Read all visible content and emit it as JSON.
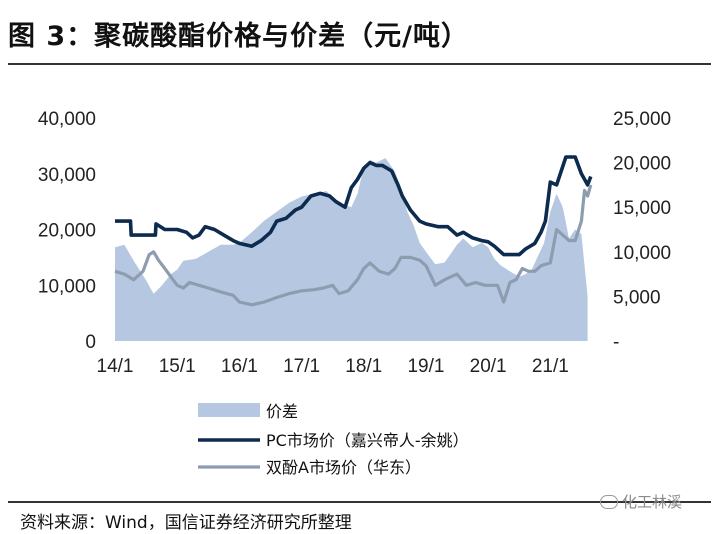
{
  "header": {
    "title": "图 3：聚碳酸酯价格与价差（元/吨）"
  },
  "footer": {
    "source": "资料来源：Wind，国信证券经济研究所整理",
    "watermark": "化工林溪"
  },
  "chart_data": {
    "type": "line",
    "title": "",
    "x_ticks": [
      "14/1",
      "15/1",
      "16/1",
      "17/1",
      "18/1",
      "19/1",
      "20/1",
      "21/1"
    ],
    "x_range": [
      2014.0,
      2021.67
    ],
    "y_left": {
      "ticks": [
        "40,000",
        "30,000",
        "20,000",
        "10,000",
        "0"
      ],
      "ylim": [
        0,
        40000
      ]
    },
    "y_right": {
      "ticks": [
        "25,000",
        "20,000",
        "15,000",
        "10,000",
        "5,000",
        "-"
      ],
      "ylim": [
        0,
        25000
      ]
    },
    "legend_position": "bottom",
    "colors": {
      "spread": "#b6c8e1",
      "pc": "#0d2a4f",
      "bpa": "#8e9cb0"
    },
    "series": [
      {
        "name": "价差",
        "kind": "area",
        "axis": "right",
        "x": [
          2014.0,
          2014.15,
          2014.3,
          2014.5,
          2014.62,
          2014.75,
          2014.9,
          2015.0,
          2015.1,
          2015.3,
          2015.5,
          2015.7,
          2015.9,
          2016.0,
          2016.2,
          2016.4,
          2016.6,
          2016.8,
          2017.0,
          2017.2,
          2017.4,
          2017.6,
          2017.8,
          2017.9,
          2018.0,
          2018.1,
          2018.2,
          2018.35,
          2018.5,
          2018.6,
          2018.7,
          2018.8,
          2018.9,
          2019.0,
          2019.15,
          2019.3,
          2019.5,
          2019.6,
          2019.75,
          2019.9,
          2020.0,
          2020.1,
          2020.2,
          2020.35,
          2020.5,
          2020.6,
          2020.7,
          2020.8,
          2020.9,
          2021.0,
          2021.1,
          2021.2,
          2021.3,
          2021.4,
          2021.5,
          2021.6
        ],
        "values": [
          10500,
          10800,
          9000,
          6800,
          5300,
          6200,
          7500,
          8000,
          9000,
          9200,
          10000,
          10800,
          10800,
          11000,
          12200,
          13500,
          14500,
          15500,
          16200,
          16500,
          16800,
          15500,
          15000,
          16500,
          19500,
          20300,
          20000,
          20500,
          19000,
          17000,
          14500,
          13000,
          11000,
          10000,
          8600,
          8800,
          10800,
          11500,
          10500,
          11000,
          10500,
          9200,
          8500,
          7800,
          7200,
          7500,
          8000,
          9500,
          11000,
          14500,
          16500,
          15000,
          11500,
          12500,
          12000,
          5000
        ]
      },
      {
        "name": "PC市场价（嘉兴帝人-余姚）",
        "kind": "line",
        "axis": "left",
        "x": [
          2014.0,
          2014.25,
          2014.26,
          2014.65,
          2014.66,
          2014.8,
          2014.9,
          2015.0,
          2015.15,
          2015.25,
          2015.35,
          2015.45,
          2015.6,
          2015.75,
          2015.9,
          2016.0,
          2016.2,
          2016.35,
          2016.5,
          2016.6,
          2016.75,
          2016.9,
          2017.0,
          2017.15,
          2017.3,
          2017.45,
          2017.55,
          2017.7,
          2017.8,
          2017.9,
          2018.0,
          2018.1,
          2018.2,
          2018.3,
          2018.45,
          2018.55,
          2018.62,
          2018.75,
          2018.9,
          2019.0,
          2019.2,
          2019.35,
          2019.5,
          2019.6,
          2019.75,
          2019.9,
          2020.0,
          2020.1,
          2020.25,
          2020.35,
          2020.5,
          2020.6,
          2020.75,
          2020.85,
          2020.92,
          2021.0,
          2021.1,
          2021.25,
          2021.4,
          2021.5,
          2021.55,
          2021.6,
          2021.65
        ],
        "values": [
          21500,
          21500,
          19000,
          19000,
          21000,
          20000,
          20000,
          20000,
          19500,
          18500,
          19000,
          20500,
          20000,
          19000,
          18000,
          17500,
          17000,
          18000,
          19500,
          21500,
          22000,
          23500,
          24000,
          26000,
          26500,
          26000,
          25000,
          24000,
          27500,
          29000,
          31000,
          32000,
          31500,
          31500,
          30500,
          28000,
          26000,
          23500,
          21500,
          21000,
          20500,
          20500,
          19000,
          19500,
          18500,
          18000,
          17800,
          17000,
          15500,
          15500,
          15500,
          16500,
          17500,
          19500,
          21500,
          28500,
          28000,
          33000,
          33000,
          30000,
          29000,
          28000,
          29500
        ]
      },
      {
        "name": "双酚A市场价（华东）",
        "kind": "line",
        "axis": "left",
        "x": [
          2014.0,
          2014.15,
          2014.3,
          2014.45,
          2014.55,
          2014.62,
          2014.7,
          2014.8,
          2014.9,
          2015.0,
          2015.1,
          2015.2,
          2015.35,
          2015.5,
          2015.7,
          2015.9,
          2016.0,
          2016.2,
          2016.4,
          2016.6,
          2016.8,
          2017.0,
          2017.2,
          2017.35,
          2017.5,
          2017.6,
          2017.75,
          2017.9,
          2018.0,
          2018.1,
          2018.25,
          2018.4,
          2018.5,
          2018.6,
          2018.75,
          2018.9,
          2019.0,
          2019.15,
          2019.3,
          2019.5,
          2019.65,
          2019.8,
          2019.95,
          2020.05,
          2020.15,
          2020.25,
          2020.35,
          2020.45,
          2020.55,
          2020.65,
          2020.75,
          2020.85,
          2021.0,
          2021.1,
          2021.2,
          2021.3,
          2021.4,
          2021.5,
          2021.55,
          2021.6,
          2021.65
        ],
        "values": [
          12500,
          12000,
          11000,
          12500,
          15500,
          16000,
          14500,
          13000,
          11500,
          10000,
          9500,
          10500,
          10000,
          9500,
          8800,
          8200,
          7000,
          6500,
          7000,
          7800,
          8500,
          9000,
          9200,
          9500,
          10000,
          8500,
          9000,
          11000,
          13000,
          14000,
          12500,
          12000,
          13000,
          15000,
          15000,
          14500,
          13500,
          10000,
          11000,
          12000,
          10000,
          10500,
          10000,
          10000,
          10000,
          7000,
          10500,
          11000,
          13000,
          12500,
          12500,
          13500,
          14000,
          20000,
          19000,
          18000,
          18000,
          21500,
          27000,
          26000,
          28000
        ]
      }
    ]
  }
}
